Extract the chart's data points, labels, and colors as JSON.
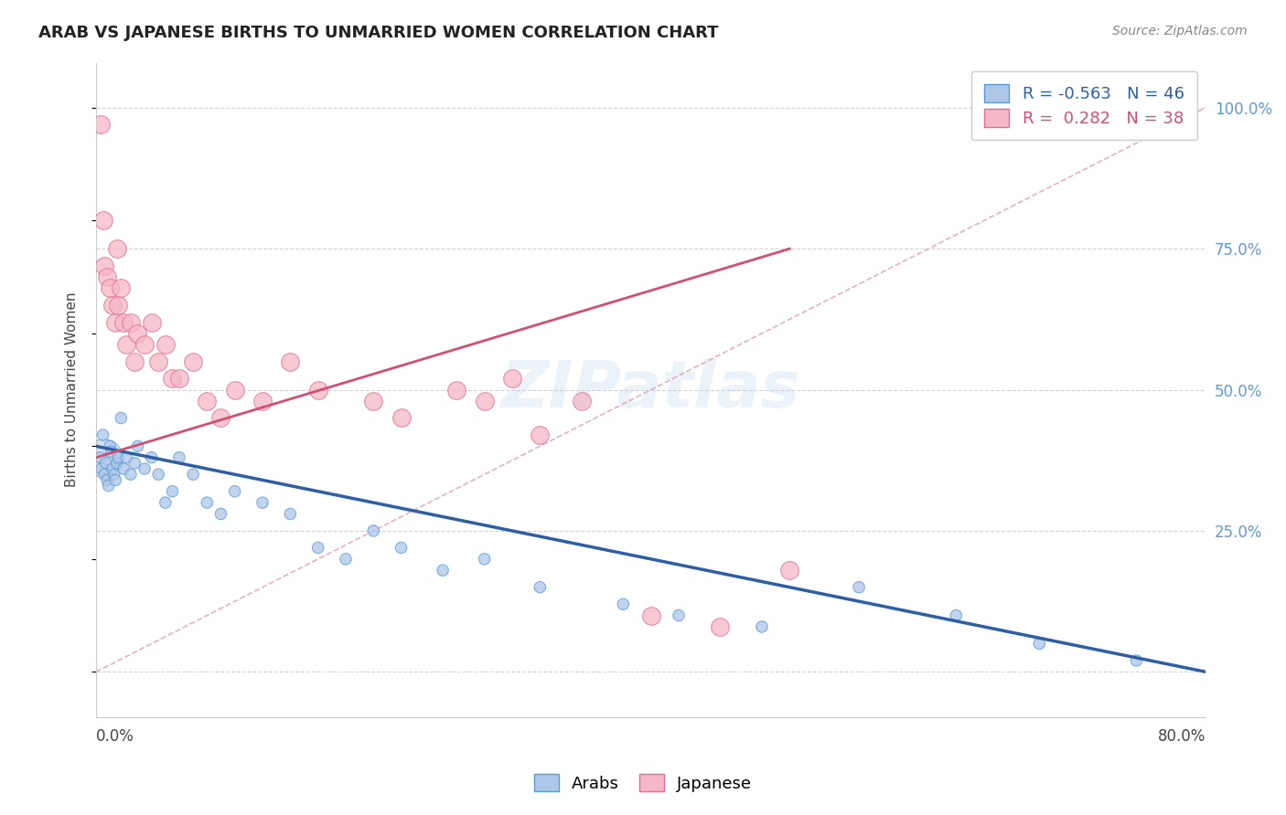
{
  "title": "ARAB VS JAPANESE BIRTHS TO UNMARRIED WOMEN CORRELATION CHART",
  "source": "Source: ZipAtlas.com",
  "ylabel": "Births to Unmarried Women",
  "xlim": [
    0.0,
    80.0
  ],
  "ylim": [
    -8.0,
    108.0
  ],
  "yticks": [
    0,
    25,
    50,
    75,
    100
  ],
  "arab_color": "#aec6e8",
  "arab_edge_color": "#5b9bd5",
  "japanese_color": "#f4b8c8",
  "japanese_edge_color": "#e07090",
  "arab_line_color": "#2e5fa3",
  "japanese_line_color": "#d05070",
  "ref_line_color": "#d8a0b0",
  "legend_arab_r": "-0.563",
  "legend_arab_n": "46",
  "legend_japanese_r": "0.282",
  "legend_japanese_n": "38",
  "arab_points_x": [
    0.3,
    0.4,
    0.5,
    0.6,
    0.7,
    0.8,
    0.9,
    1.0,
    1.1,
    1.2,
    1.3,
    1.4,
    1.5,
    1.6,
    1.8,
    2.0,
    2.2,
    2.5,
    2.8,
    3.0,
    3.5,
    4.0,
    4.5,
    5.0,
    5.5,
    6.0,
    7.0,
    8.0,
    9.0,
    10.0,
    12.0,
    14.0,
    16.0,
    18.0,
    20.0,
    22.0,
    25.0,
    28.0,
    32.0,
    38.0,
    42.0,
    48.0,
    55.0,
    62.0,
    68.0,
    75.0
  ],
  "arab_points_y": [
    38.0,
    36.0,
    42.0,
    35.0,
    37.0,
    34.0,
    33.0,
    40.0,
    39.0,
    36.0,
    35.0,
    34.0,
    37.0,
    38.0,
    45.0,
    36.0,
    38.0,
    35.0,
    37.0,
    40.0,
    36.0,
    38.0,
    35.0,
    30.0,
    32.0,
    38.0,
    35.0,
    30.0,
    28.0,
    32.0,
    30.0,
    28.0,
    22.0,
    20.0,
    25.0,
    22.0,
    18.0,
    20.0,
    15.0,
    12.0,
    10.0,
    8.0,
    15.0,
    10.0,
    5.0,
    2.0
  ],
  "arab_sizes_scale": [
    80,
    80,
    80,
    80,
    80,
    80,
    80,
    80,
    80,
    80,
    80,
    80,
    80,
    80,
    80,
    80,
    80,
    80,
    80,
    80,
    80,
    80,
    80,
    80,
    80,
    80,
    80,
    80,
    80,
    80,
    80,
    80,
    80,
    80,
    80,
    80,
    80,
    80,
    80,
    80,
    80,
    80,
    80,
    80,
    80,
    80
  ],
  "arab_big_x": 0.5,
  "arab_big_y": 38.0,
  "japanese_points_x": [
    0.3,
    0.5,
    0.6,
    0.8,
    1.0,
    1.2,
    1.4,
    1.5,
    1.6,
    1.8,
    2.0,
    2.2,
    2.5,
    2.8,
    3.0,
    3.5,
    4.0,
    4.5,
    5.0,
    5.5,
    6.0,
    7.0,
    8.0,
    9.0,
    10.0,
    12.0,
    14.0,
    16.0,
    20.0,
    22.0,
    26.0,
    28.0,
    30.0,
    32.0,
    35.0,
    40.0,
    45.0,
    50.0
  ],
  "japanese_points_y": [
    97.0,
    80.0,
    72.0,
    70.0,
    68.0,
    65.0,
    62.0,
    75.0,
    65.0,
    68.0,
    62.0,
    58.0,
    62.0,
    55.0,
    60.0,
    58.0,
    62.0,
    55.0,
    58.0,
    52.0,
    52.0,
    55.0,
    48.0,
    45.0,
    50.0,
    48.0,
    55.0,
    50.0,
    48.0,
    45.0,
    50.0,
    48.0,
    52.0,
    42.0,
    48.0,
    10.0,
    8.0,
    18.0
  ],
  "arab_line_x": [
    0.0,
    80.0
  ],
  "arab_line_y": [
    40.0,
    0.0
  ],
  "japanese_line_x": [
    0.0,
    50.0
  ],
  "japanese_line_y": [
    38.0,
    75.0
  ],
  "ref_line_x": [
    0.0,
    80.0
  ],
  "ref_line_y": [
    0.0,
    100.0
  ],
  "background_color": "#ffffff",
  "grid_color": "#cccccc"
}
